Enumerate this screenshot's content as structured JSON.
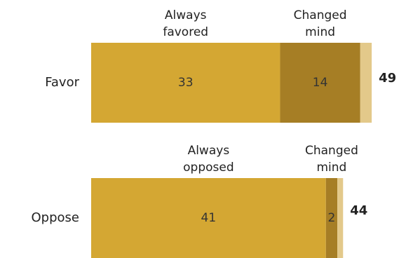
{
  "chart_data": {
    "type": "bar",
    "orientation": "horizontal",
    "stacked": true,
    "categories": [
      "Favor",
      "Oppose"
    ],
    "totals": [
      49,
      44
    ],
    "colors": {
      "primary": "#D4A733",
      "changed": "#A67E25",
      "remainder": "#E3C98A"
    },
    "rows": [
      {
        "category": "Favor",
        "total": 49,
        "segments": [
          {
            "header_lines": [
              "Always",
              "favored"
            ],
            "value": 33,
            "label": "33"
          },
          {
            "header_lines": [
              "Changed",
              "mind"
            ],
            "value": 14,
            "label": "14"
          },
          {
            "value": 2
          }
        ]
      },
      {
        "category": "Oppose",
        "total": 44,
        "segments": [
          {
            "header_lines": [
              "Always",
              "opposed"
            ],
            "value": 41,
            "label": "41"
          },
          {
            "header_lines": [
              "Changed",
              "mind"
            ],
            "value": 2,
            "label": "2"
          },
          {
            "value": 1
          }
        ]
      }
    ]
  }
}
